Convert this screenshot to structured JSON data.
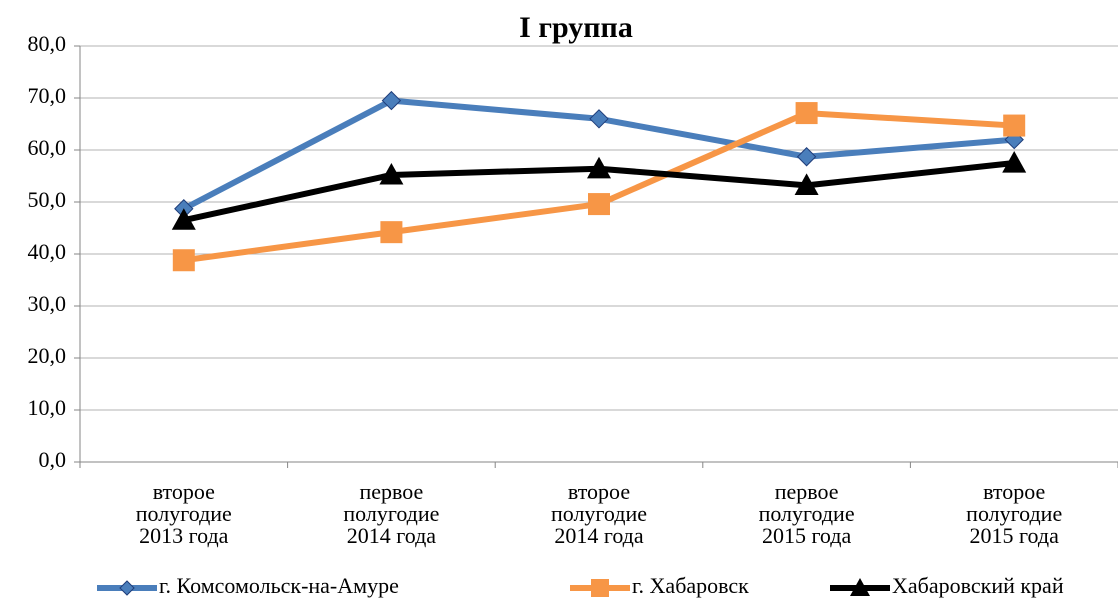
{
  "chart_data": {
    "type": "line",
    "title": "I   группа",
    "categories": [
      "второе\nполугодие\n2013 года",
      "первое\nполугодие\n2014 года",
      "второе\nполугодие\n2014 года",
      "первое\nполугодие\n2015 года",
      "второе\nполугодие\n2015 года"
    ],
    "series": [
      {
        "name": "г. Комсомольск-на-Амуре",
        "color": "#4a7ebb",
        "marker": "diamond",
        "values": [
          48.7,
          69.5,
          66.0,
          58.7,
          62.0
        ]
      },
      {
        "name": "г. Хабаровск",
        "color": "#f79646",
        "marker": "square",
        "values": [
          38.8,
          44.2,
          49.6,
          67.1,
          64.7
        ]
      },
      {
        "name": "Хабаровский край",
        "color": "#000000",
        "marker": "triangle",
        "values": [
          46.5,
          55.2,
          56.4,
          53.2,
          57.5
        ]
      }
    ],
    "ylim": [
      0,
      80
    ],
    "yticks": [
      {
        "value": 0,
        "label": "0,0"
      },
      {
        "value": 10,
        "label": "10,0"
      },
      {
        "value": 20,
        "label": "20,0"
      },
      {
        "value": 30,
        "label": "30,0"
      },
      {
        "value": 40,
        "label": "40,0"
      },
      {
        "value": 50,
        "label": "50,0"
      },
      {
        "value": 60,
        "label": "60,0"
      },
      {
        "value": 70,
        "label": "70,0"
      },
      {
        "value": 80,
        "label": "80,0"
      }
    ],
    "grid": true,
    "legend": "bottom"
  }
}
